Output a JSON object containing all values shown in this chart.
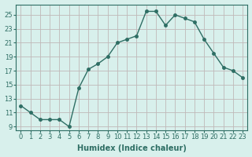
{
  "x": [
    0,
    1,
    2,
    3,
    4,
    5,
    6,
    7,
    8,
    9,
    10,
    11,
    12,
    13,
    14,
    15,
    16,
    17,
    18,
    19,
    20,
    21,
    22,
    23
  ],
  "y": [
    12,
    11,
    10,
    10,
    10,
    9,
    14.5,
    17.2,
    18,
    19,
    21,
    21.5,
    22,
    25.5,
    25.5,
    23.5,
    25,
    24.5,
    24,
    21.5,
    19.5,
    17.5,
    17,
    16
  ],
  "line_color": "#2e6e64",
  "marker": "o",
  "marker_size": 2.5,
  "bg_color": "#d8f0ec",
  "plot_bg_color": "#d8f0ec",
  "grid_color": "#c0b8b8",
  "xlabel": "Humidex (Indice chaleur)",
  "xlabel_fontsize": 7,
  "tick_fontsize": 6,
  "ylim": [
    8.5,
    26.5
  ],
  "xlim": [
    -0.5,
    23.5
  ],
  "yticks": [
    9,
    11,
    13,
    15,
    17,
    19,
    21,
    23,
    25
  ],
  "xticks": [
    0,
    1,
    2,
    3,
    4,
    5,
    6,
    7,
    8,
    9,
    10,
    11,
    12,
    13,
    14,
    15,
    16,
    17,
    18,
    19,
    20,
    21,
    22,
    23
  ],
  "line_width": 1.0
}
